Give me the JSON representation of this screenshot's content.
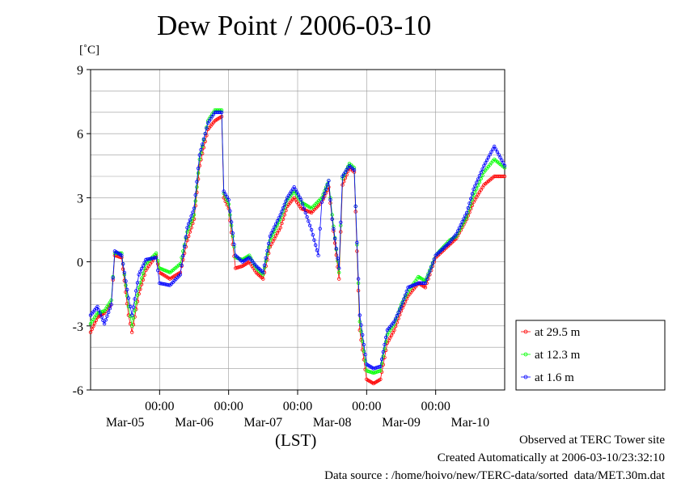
{
  "chart_data": {
    "type": "line",
    "title": "Dew Point / 2006-03-10",
    "ylabel": "[˚C]",
    "xlabel": "(LST)",
    "ylim": [
      -6,
      9
    ],
    "yticks": [
      "-6",
      "-3",
      "0",
      "3",
      "6",
      "9"
    ],
    "xlim": [
      0,
      6
    ],
    "x_time_labels": [
      "00:00",
      "00:00",
      "00:00",
      "00:00",
      "00:00"
    ],
    "x_date_labels": [
      "Mar-05",
      "Mar-06",
      "Mar-07",
      "Mar-08",
      "Mar-09",
      "Mar-10"
    ],
    "grid": true,
    "legend_position": "right",
    "series": [
      {
        "name": "at 29.5 m",
        "color": "#ff0000",
        "points": [
          [
            0.0,
            -3.3
          ],
          [
            0.1,
            -2.6
          ],
          [
            0.2,
            -2.4
          ],
          [
            0.3,
            -2.0
          ],
          [
            0.35,
            0.3
          ],
          [
            0.45,
            0.2
          ],
          [
            0.55,
            -2.5
          ],
          [
            0.6,
            -3.3
          ],
          [
            0.7,
            -1.5
          ],
          [
            0.8,
            -0.4
          ],
          [
            0.95,
            0.3
          ],
          [
            1.0,
            -0.5
          ],
          [
            1.15,
            -0.8
          ],
          [
            1.3,
            -0.5
          ],
          [
            1.4,
            1.0
          ],
          [
            1.5,
            2.0
          ],
          [
            1.58,
            4.5
          ],
          [
            1.7,
            6.2
          ],
          [
            1.8,
            6.6
          ],
          [
            1.9,
            6.8
          ],
          [
            1.93,
            3.0
          ],
          [
            2.0,
            2.5
          ],
          [
            2.1,
            -0.3
          ],
          [
            2.2,
            -0.2
          ],
          [
            2.3,
            0.0
          ],
          [
            2.4,
            -0.5
          ],
          [
            2.5,
            -0.8
          ],
          [
            2.6,
            0.7
          ],
          [
            2.75,
            1.6
          ],
          [
            2.85,
            2.6
          ],
          [
            2.95,
            3.0
          ],
          [
            3.05,
            2.5
          ],
          [
            3.2,
            2.3
          ],
          [
            3.35,
            2.8
          ],
          [
            3.45,
            3.5
          ],
          [
            3.5,
            2.0
          ],
          [
            3.6,
            -0.8
          ],
          [
            3.65,
            3.6
          ],
          [
            3.75,
            4.4
          ],
          [
            3.82,
            4.2
          ],
          [
            3.9,
            -3.2
          ],
          [
            4.0,
            -5.5
          ],
          [
            4.1,
            -5.7
          ],
          [
            4.2,
            -5.5
          ],
          [
            4.3,
            -3.8
          ],
          [
            4.4,
            -3.2
          ],
          [
            4.5,
            -2.3
          ],
          [
            4.6,
            -1.6
          ],
          [
            4.75,
            -1.0
          ],
          [
            4.85,
            -1.2
          ],
          [
            5.0,
            0.2
          ],
          [
            5.2,
            0.8
          ],
          [
            5.3,
            1.1
          ],
          [
            5.45,
            2.0
          ],
          [
            5.55,
            2.8
          ],
          [
            5.7,
            3.6
          ],
          [
            5.85,
            4.0
          ],
          [
            6.0,
            4.0
          ]
        ]
      },
      {
        "name": "at 12.3 m",
        "color": "#00ff00",
        "points": [
          [
            0.0,
            -2.9
          ],
          [
            0.1,
            -2.4
          ],
          [
            0.2,
            -2.3
          ],
          [
            0.3,
            -1.8
          ],
          [
            0.35,
            0.4
          ],
          [
            0.45,
            0.4
          ],
          [
            0.55,
            -2.1
          ],
          [
            0.6,
            -3.0
          ],
          [
            0.7,
            -1.2
          ],
          [
            0.8,
            -0.1
          ],
          [
            0.95,
            0.4
          ],
          [
            1.0,
            -0.3
          ],
          [
            1.15,
            -0.5
          ],
          [
            1.3,
            -0.1
          ],
          [
            1.4,
            1.4
          ],
          [
            1.5,
            2.2
          ],
          [
            1.58,
            4.8
          ],
          [
            1.7,
            6.6
          ],
          [
            1.8,
            7.1
          ],
          [
            1.9,
            7.1
          ],
          [
            1.93,
            3.2
          ],
          [
            2.0,
            2.7
          ],
          [
            2.1,
            0.2
          ],
          [
            2.2,
            0.1
          ],
          [
            2.3,
            0.3
          ],
          [
            2.4,
            -0.3
          ],
          [
            2.5,
            -0.6
          ],
          [
            2.6,
            1.0
          ],
          [
            2.75,
            2.0
          ],
          [
            2.85,
            2.9
          ],
          [
            2.95,
            3.3
          ],
          [
            3.05,
            2.8
          ],
          [
            3.2,
            2.5
          ],
          [
            3.35,
            3.0
          ],
          [
            3.45,
            3.8
          ],
          [
            3.5,
            2.2
          ],
          [
            3.6,
            -0.5
          ],
          [
            3.65,
            3.9
          ],
          [
            3.75,
            4.6
          ],
          [
            3.82,
            4.4
          ],
          [
            3.9,
            -2.8
          ],
          [
            4.0,
            -5.1
          ],
          [
            4.1,
            -5.2
          ],
          [
            4.2,
            -5.1
          ],
          [
            4.3,
            -3.4
          ],
          [
            4.4,
            -2.9
          ],
          [
            4.5,
            -2.0
          ],
          [
            4.6,
            -1.4
          ],
          [
            4.75,
            -0.7
          ],
          [
            4.85,
            -0.9
          ],
          [
            5.0,
            0.3
          ],
          [
            5.2,
            1.0
          ],
          [
            5.3,
            1.2
          ],
          [
            5.45,
            2.1
          ],
          [
            5.55,
            3.1
          ],
          [
            5.7,
            4.2
          ],
          [
            5.85,
            4.8
          ],
          [
            6.0,
            4.4
          ]
        ]
      },
      {
        "name": "at 1.6 m",
        "color": "#0000ff",
        "points": [
          [
            0.0,
            -2.5
          ],
          [
            0.1,
            -2.1
          ],
          [
            0.2,
            -2.9
          ],
          [
            0.3,
            -2.0
          ],
          [
            0.35,
            0.5
          ],
          [
            0.45,
            0.3
          ],
          [
            0.55,
            -1.7
          ],
          [
            0.6,
            -2.5
          ],
          [
            0.7,
            -0.6
          ],
          [
            0.8,
            0.1
          ],
          [
            0.95,
            0.2
          ],
          [
            1.0,
            -1.0
          ],
          [
            1.15,
            -1.1
          ],
          [
            1.3,
            -0.6
          ],
          [
            1.4,
            1.6
          ],
          [
            1.5,
            2.5
          ],
          [
            1.58,
            5.0
          ],
          [
            1.7,
            6.5
          ],
          [
            1.8,
            7.0
          ],
          [
            1.9,
            7.0
          ],
          [
            1.93,
            3.3
          ],
          [
            2.0,
            2.9
          ],
          [
            2.1,
            0.3
          ],
          [
            2.2,
            0.0
          ],
          [
            2.3,
            0.2
          ],
          [
            2.4,
            -0.2
          ],
          [
            2.5,
            -0.5
          ],
          [
            2.6,
            1.2
          ],
          [
            2.75,
            2.2
          ],
          [
            2.85,
            3.0
          ],
          [
            2.95,
            3.5
          ],
          [
            3.05,
            2.9
          ],
          [
            3.2,
            1.5
          ],
          [
            3.3,
            0.3
          ],
          [
            3.35,
            2.8
          ],
          [
            3.45,
            3.8
          ],
          [
            3.5,
            2.0
          ],
          [
            3.6,
            -0.3
          ],
          [
            3.65,
            4.0
          ],
          [
            3.75,
            4.5
          ],
          [
            3.82,
            4.3
          ],
          [
            3.9,
            -2.5
          ],
          [
            4.0,
            -4.8
          ],
          [
            4.1,
            -5.0
          ],
          [
            4.2,
            -4.9
          ],
          [
            4.3,
            -3.2
          ],
          [
            4.4,
            -2.8
          ],
          [
            4.5,
            -2.1
          ],
          [
            4.6,
            -1.2
          ],
          [
            4.75,
            -1.0
          ],
          [
            4.85,
            -1.0
          ],
          [
            5.0,
            0.3
          ],
          [
            5.2,
            0.9
          ],
          [
            5.3,
            1.3
          ],
          [
            5.45,
            2.3
          ],
          [
            5.55,
            3.4
          ],
          [
            5.7,
            4.5
          ],
          [
            5.85,
            5.4
          ],
          [
            6.0,
            4.5
          ]
        ]
      }
    ]
  },
  "footer": {
    "line1": "Observed at TERC Tower site",
    "line2": "Created Automatically at 2006-03-10/23:32:10",
    "line3": "Data source : /home/hoivo/new/TERC-data/sorted  data/MET.30m.dat"
  }
}
